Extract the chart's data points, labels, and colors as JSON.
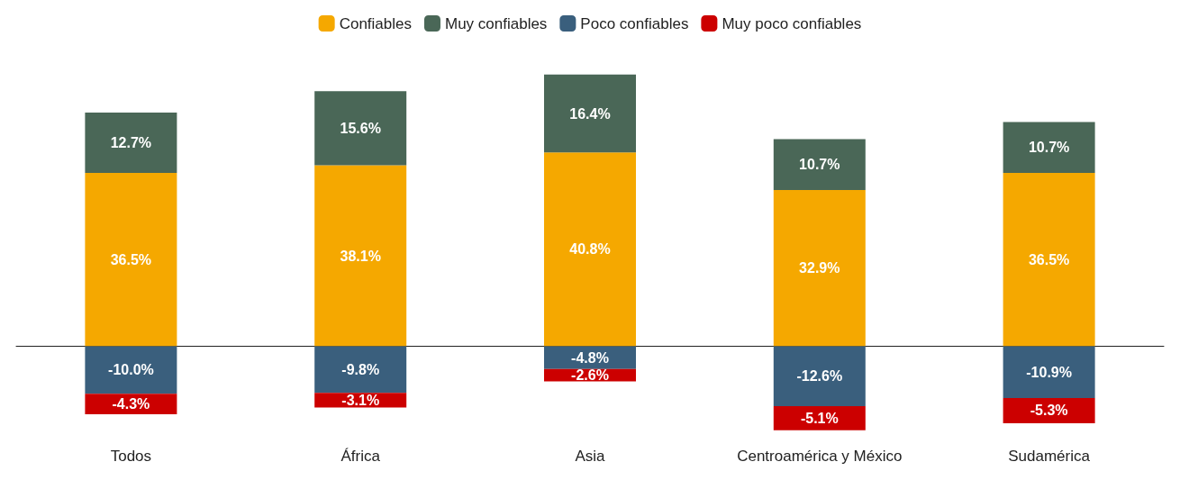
{
  "chart_data": {
    "type": "bar",
    "stacked": true,
    "legend": "top",
    "categories": [
      "Todos",
      "África",
      "Asia",
      "Centroamérica y México",
      "Sudamérica"
    ],
    "series": [
      {
        "name": "Confiables",
        "color": "#f5a800",
        "values": [
          36.5,
          38.1,
          40.8,
          32.9,
          36.5
        ],
        "value_labels": [
          "36.5%",
          "38.1%",
          "40.8%",
          "32.9%",
          "36.5%"
        ]
      },
      {
        "name": "Muy confiables",
        "color": "#4a6757",
        "values": [
          12.7,
          15.6,
          16.4,
          10.7,
          10.7
        ],
        "value_labels": [
          "12.7%",
          "15.6%",
          "16.4%",
          "10.7%",
          "10.7%"
        ]
      },
      {
        "name": "Poco confiables",
        "color": "#3a5f7d",
        "values": [
          -10.0,
          -9.8,
          -4.8,
          -12.6,
          -10.9
        ],
        "value_labels": [
          "-10.0%",
          "-9.8%",
          "-4.8%",
          "-12.6%",
          "-10.9%"
        ]
      },
      {
        "name": "Muy poco confiables",
        "color": "#cc0000",
        "values": [
          -4.3,
          -3.1,
          -2.6,
          -5.1,
          -5.3
        ],
        "value_labels": [
          "-4.3%",
          "-3.1%",
          "-2.6%",
          "-5.1%",
          "-5.3%"
        ]
      }
    ]
  }
}
